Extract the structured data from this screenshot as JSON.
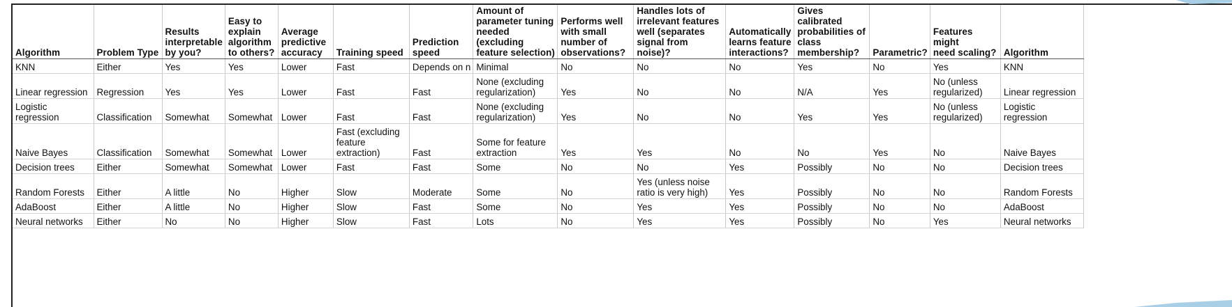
{
  "table": {
    "columns": [
      "Algorithm",
      "Problem Type",
      "Results\ninterpretable\nby you?",
      "Easy to\nexplain\nalgorithm\nto others?",
      "Average\npredictive\naccuracy",
      "Training speed",
      "Prediction\nspeed",
      "Amount of\nparameter tuning\nneeded (excluding\nfeature selection)",
      "Performs well\nwith small\nnumber of\nobservations?",
      "Handles lots of\nirrelevant features\nwell (separates\nsignal from noise)?",
      "Automatically\nlearns feature\ninteractions?",
      "Gives calibrated\nprobabilities of\nclass\nmembership?",
      "Parametric?",
      "Features might\nneed scaling?",
      "Algorithm"
    ],
    "rows": [
      [
        "KNN",
        "Either",
        "Yes",
        "Yes",
        "Lower",
        "Fast",
        "Depends on n",
        "Minimal",
        "No",
        "No",
        "No",
        "Yes",
        "No",
        "Yes",
        "KNN"
      ],
      [
        "Linear regression",
        "Regression",
        "Yes",
        "Yes",
        "Lower",
        "Fast",
        "Fast",
        "None (excluding\nregularization)",
        "Yes",
        "No",
        "No",
        "N/A",
        "Yes",
        "No (unless\nregularized)",
        "Linear regression"
      ],
      [
        "Logistic regression",
        "Classification",
        "Somewhat",
        "Somewhat",
        "Lower",
        "Fast",
        "Fast",
        "None (excluding\nregularization)",
        "Yes",
        "No",
        "No",
        "Yes",
        "Yes",
        "No (unless\nregularized)",
        "Logistic regression"
      ],
      [
        "Naive Bayes",
        "Classification",
        "Somewhat",
        "Somewhat",
        "Lower",
        "Fast (excluding\nfeature\nextraction)",
        "Fast",
        "Some for feature\nextraction",
        "Yes",
        "Yes",
        "No",
        "No",
        "Yes",
        "No",
        "Naive Bayes"
      ],
      [
        "Decision trees",
        "Either",
        "Somewhat",
        "Somewhat",
        "Lower",
        "Fast",
        "Fast",
        "Some",
        "No",
        "No",
        "Yes",
        "Possibly",
        "No",
        "No",
        "Decision trees"
      ],
      [
        "Random Forests",
        "Either",
        "A little",
        "No",
        "Higher",
        "Slow",
        "Moderate",
        "Some",
        "No",
        "Yes (unless noise\nratio is very high)",
        "Yes",
        "Possibly",
        "No",
        "No",
        "Random Forests"
      ],
      [
        "AdaBoost",
        "Either",
        "A little",
        "No",
        "Higher",
        "Slow",
        "Fast",
        "Some",
        "No",
        "Yes",
        "Yes",
        "Possibly",
        "No",
        "No",
        "AdaBoost"
      ],
      [
        "Neural networks",
        "Either",
        "No",
        "No",
        "Higher",
        "Slow",
        "Fast",
        "Lots",
        "No",
        "Yes",
        "Yes",
        "Possibly",
        "No",
        "Yes",
        "Neural networks"
      ]
    ]
  },
  "colors": {
    "frame": "#222222",
    "gridline": "#c8c8c8",
    "header_rule": "#555555",
    "accent_decor": "#a9cfe6"
  }
}
